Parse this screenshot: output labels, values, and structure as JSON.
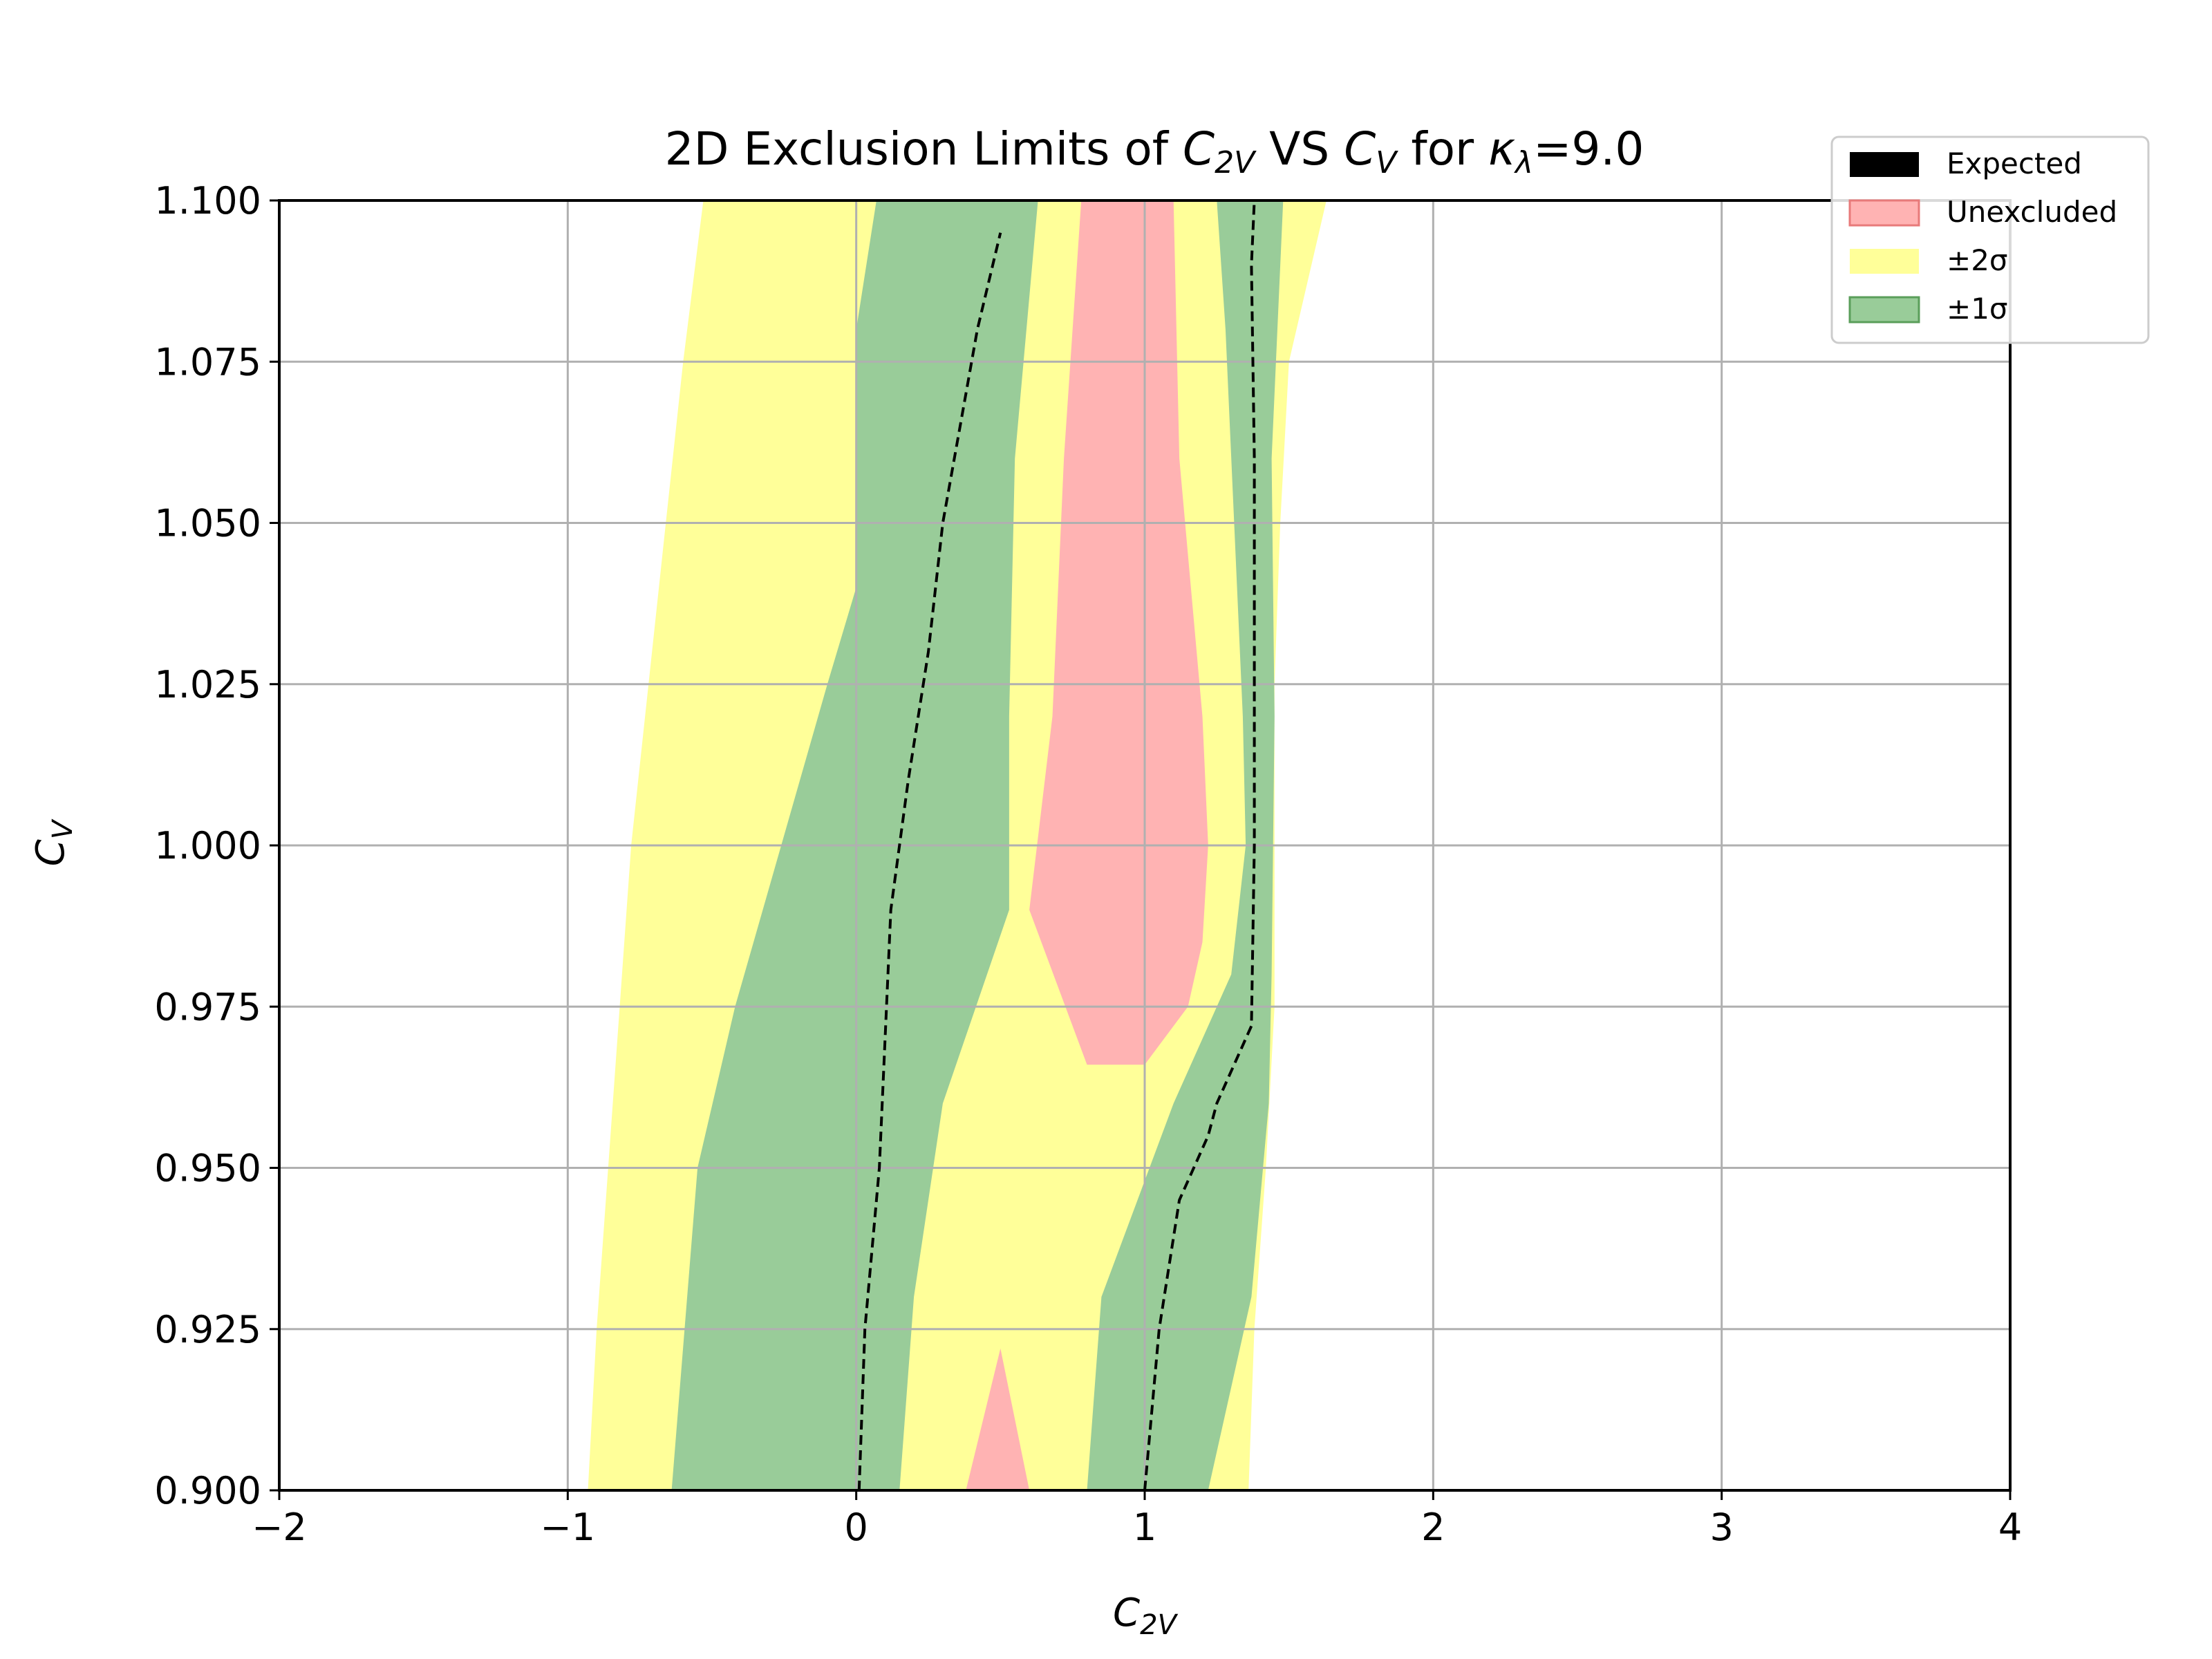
{
  "chart_data": {
    "type": "contour",
    "title": "2D Exclusion Limits of C2V VS CV for κλ=9.0",
    "title_parts": {
      "prefix": "2D Exclusion Limits of ",
      "sym1": "C",
      "sub1": "2V",
      "mid": " VS ",
      "sym2": "C",
      "sub2": "V",
      "mid2": " for ",
      "sym3": "κ",
      "sub3": "λ",
      "suffix": "=9.0"
    },
    "xlabel": {
      "sym": "C",
      "sub": "2V"
    },
    "ylabel": {
      "sym": "C",
      "sub": "V"
    },
    "xlim": [
      -2,
      4
    ],
    "ylim": [
      0.9,
      1.1
    ],
    "xticks": [
      -2,
      -1,
      0,
      1,
      2,
      3,
      4
    ],
    "xtick_labels": [
      "−2",
      "−1",
      "0",
      "1",
      "2",
      "3",
      "4"
    ],
    "yticks": [
      0.9,
      0.925,
      0.95,
      0.975,
      1.0,
      1.025,
      1.05,
      1.075,
      1.1
    ],
    "ytick_labels": [
      "0.900",
      "0.925",
      "0.950",
      "0.975",
      "1.000",
      "1.025",
      "1.050",
      "1.075",
      "1.100"
    ],
    "grid": true,
    "legend_position": "top-right (outside axes)",
    "legend": [
      {
        "label": "Expected",
        "color": "#000000"
      },
      {
        "label": "Unexcluded",
        "color": "#ffb3b3"
      },
      {
        "label": "±2σ",
        "color": "#ffff99"
      },
      {
        "label": "±1σ",
        "color": "#99cc99"
      }
    ],
    "colors": {
      "unexcluded": "#ffb3b3",
      "two_sigma": "#ffff99",
      "one_sigma": "#99cc99",
      "expected": "#000000",
      "grid": "#b0b0b0"
    },
    "regions": {
      "two_sigma": [
        [
          [
            -0.93,
            0.9
          ],
          [
            -0.9,
            0.925
          ],
          [
            -0.86,
            0.95
          ],
          [
            -0.82,
            0.975
          ],
          [
            -0.78,
            1.0
          ],
          [
            -0.72,
            1.025
          ],
          [
            -0.66,
            1.05
          ],
          [
            -0.6,
            1.075
          ],
          [
            -0.53,
            1.1
          ],
          [
            1.63,
            1.1
          ],
          [
            1.5,
            1.075
          ],
          [
            1.47,
            1.05
          ],
          [
            1.45,
            1.025
          ],
          [
            1.45,
            0.975
          ],
          [
            1.42,
            0.95
          ],
          [
            1.38,
            0.925
          ],
          [
            1.36,
            0.9
          ]
        ]
      ],
      "one_sigma": [
        [
          [
            -0.64,
            0.9
          ],
          [
            -0.55,
            0.95
          ],
          [
            -0.42,
            0.975
          ],
          [
            -0.1,
            1.025
          ],
          [
            0.0,
            1.04
          ],
          [
            0.0,
            1.08
          ],
          [
            0.07,
            1.1
          ],
          [
            0.63,
            1.1
          ],
          [
            0.55,
            1.06
          ],
          [
            0.53,
            1.02
          ],
          [
            0.53,
            1.0
          ],
          [
            0.53,
            0.99
          ],
          [
            0.3,
            0.96
          ],
          [
            0.2,
            0.93
          ],
          [
            0.15,
            0.9
          ]
        ],
        [
          [
            0.8,
            0.9
          ],
          [
            0.85,
            0.93
          ],
          [
            1.1,
            0.96
          ],
          [
            1.3,
            0.98
          ],
          [
            1.35,
            1.0
          ],
          [
            1.34,
            1.02
          ],
          [
            1.31,
            1.05
          ],
          [
            1.28,
            1.08
          ],
          [
            1.25,
            1.1
          ],
          [
            1.48,
            1.1
          ],
          [
            1.44,
            1.06
          ],
          [
            1.45,
            1.02
          ],
          [
            1.44,
            0.98
          ],
          [
            1.43,
            0.96
          ],
          [
            1.37,
            0.93
          ],
          [
            1.22,
            0.9
          ]
        ]
      ],
      "unexcluded": [
        [
          [
            0.8,
            0.966
          ],
          [
            0.6,
            0.99
          ],
          [
            0.68,
            1.02
          ],
          [
            0.72,
            1.06
          ],
          [
            0.78,
            1.1
          ],
          [
            1.1,
            1.1
          ],
          [
            1.12,
            1.06
          ],
          [
            1.2,
            1.02
          ],
          [
            1.22,
            1.0
          ],
          [
            1.2,
            0.985
          ],
          [
            1.15,
            0.975
          ],
          [
            1.0,
            0.966
          ]
        ],
        [
          [
            0.38,
            0.9
          ],
          [
            0.5,
            0.922
          ],
          [
            0.6,
            0.9
          ]
        ]
      ]
    },
    "series": [
      {
        "name": "Expected",
        "style": "dashed",
        "curves": [
          {
            "x": [
              0.01,
              0.03,
              0.08,
              0.12,
              0.18,
              0.25,
              0.3,
              0.38,
              0.42,
              0.5
            ],
            "y": [
              0.9,
              0.925,
              0.95,
              0.99,
              1.01,
              1.03,
              1.05,
              1.07,
              1.08,
              1.095
            ]
          },
          {
            "x": [
              1.0,
              1.05,
              1.12,
              1.22,
              1.25,
              1.37,
              1.38,
              1.38,
              1.38,
              1.37,
              1.38
            ],
            "y": [
              0.9,
              0.925,
              0.945,
              0.955,
              0.96,
              0.972,
              1.0,
              1.025,
              1.06,
              1.09,
              1.1
            ]
          }
        ]
      }
    ]
  }
}
